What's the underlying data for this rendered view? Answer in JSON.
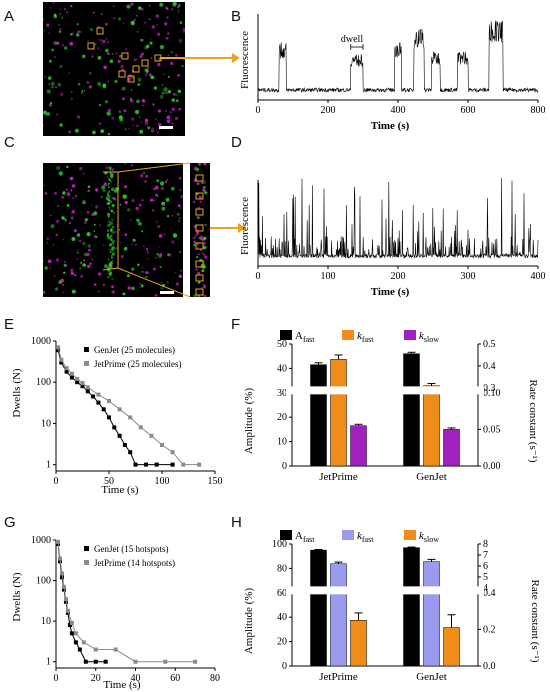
{
  "panels": {
    "A": "A",
    "B": "B",
    "C": "C",
    "D": "D",
    "E": "E",
    "F": "F",
    "G": "G",
    "H": "H"
  },
  "colors": {
    "orange": "#E8A320",
    "green": "#33cc33",
    "magenta": "#c020c0",
    "blue_light": "#9a9aee",
    "orange_bar": "#f08c1a",
    "purple": "#a020c0",
    "gray": "#8a8a8a"
  },
  "chart_data": [
    {
      "id": "B",
      "type": "line",
      "title": "",
      "xlabel": "Time (s)",
      "ylabel": "Fluorescence",
      "xlim": [
        0,
        800
      ],
      "xticks": [
        "0",
        "200",
        "400",
        "600",
        "800"
      ],
      "annotation": "dwell",
      "bursts": [
        [
          60,
          80,
          0.55
        ],
        [
          265,
          300,
          0.42
        ],
        [
          390,
          410,
          0.55
        ],
        [
          445,
          475,
          0.72
        ],
        [
          495,
          520,
          0.45
        ],
        [
          570,
          600,
          0.45
        ],
        [
          660,
          700,
          0.8
        ]
      ]
    },
    {
      "id": "D",
      "type": "line",
      "title": "",
      "xlabel": "Time (s)",
      "ylabel": "Fluorescence",
      "xlim": [
        0,
        400
      ],
      "xticks": [
        "0",
        "100",
        "200",
        "300",
        "400"
      ]
    },
    {
      "id": "E",
      "type": "scatter",
      "xlabel": "Time (s)",
      "ylabel": "Dwells (N)",
      "xlim": [
        0,
        150
      ],
      "ylim_log": [
        0.7,
        1000
      ],
      "xticks": [
        "0",
        "50",
        "100",
        "150"
      ],
      "yticks": [
        "1000",
        "100",
        "10",
        "1"
      ],
      "series": [
        {
          "name": "GenJet (25 molecules)",
          "color": "#000000",
          "points": [
            [
              2,
              600
            ],
            [
              5,
              300
            ],
            [
              10,
              180
            ],
            [
              15,
              130
            ],
            [
              20,
              100
            ],
            [
              25,
              80
            ],
            [
              30,
              60
            ],
            [
              35,
              45
            ],
            [
              40,
              32
            ],
            [
              45,
              22
            ],
            [
              50,
              14
            ],
            [
              55,
              8
            ],
            [
              60,
              5
            ],
            [
              65,
              3
            ],
            [
              70,
              2
            ],
            [
              75,
              1
            ],
            [
              85,
              1
            ],
            [
              95,
              1
            ],
            [
              110,
              1
            ]
          ]
        },
        {
          "name": "JetPrime (25 molecules)",
          "color": "#8a8a8a",
          "points": [
            [
              2,
              700
            ],
            [
              5,
              350
            ],
            [
              10,
              220
            ],
            [
              15,
              160
            ],
            [
              20,
              120
            ],
            [
              25,
              95
            ],
            [
              30,
              75
            ],
            [
              40,
              50
            ],
            [
              50,
              35
            ],
            [
              60,
              22
            ],
            [
              70,
              14
            ],
            [
              80,
              8
            ],
            [
              90,
              5
            ],
            [
              100,
              3
            ],
            [
              110,
              2
            ],
            [
              120,
              1
            ],
            [
              135,
              1
            ]
          ]
        }
      ]
    },
    {
      "id": "F",
      "type": "bar",
      "categories": [
        "JetPrime",
        "GenJet"
      ],
      "ylabel": "Amplitude (%)",
      "ylabel_right": "Rate constant (s⁻¹)",
      "yticks_left": [
        "0",
        "10",
        "20",
        "30",
        "40",
        "50"
      ],
      "yticks_right": [
        "0.00",
        "0.05",
        "0.10",
        "0.3",
        "0.4",
        "0.5"
      ],
      "legend": [
        "A",
        "fast",
        "k",
        "fast",
        "k",
        "slow"
      ],
      "series": [
        {
          "name": "A fast",
          "color": "#000000",
          "values": [
            41.5,
            46.0
          ],
          "errors": [
            0.8,
            0.6
          ]
        },
        {
          "name": "k fast",
          "color": "#f08c1a",
          "values": [
            0.43,
            0.31
          ],
          "errors": [
            0.02,
            0.01
          ]
        },
        {
          "name": "k slow",
          "color": "#a020c0",
          "values": [
            0.055,
            0.05
          ],
          "errors": [
            0.002,
            0.002
          ]
        }
      ]
    },
    {
      "id": "G",
      "type": "scatter",
      "xlabel": "Time (s)",
      "ylabel": "Dwells (N)",
      "xlim": [
        0,
        80
      ],
      "ylim_log": [
        0.7,
        1000
      ],
      "xticks": [
        "0",
        "20",
        "40",
        "60",
        "80"
      ],
      "yticks": [
        "1000",
        "100",
        "10",
        "1"
      ],
      "series": [
        {
          "name": "GenJet (15 hotspots)",
          "color": "#000000",
          "points": [
            [
              1,
              800
            ],
            [
              2,
              300
            ],
            [
              3,
              120
            ],
            [
              4,
              60
            ],
            [
              5,
              30
            ],
            [
              6,
              16
            ],
            [
              7,
              8
            ],
            [
              8,
              5
            ],
            [
              10,
              3
            ],
            [
              12,
              2
            ],
            [
              15,
              1
            ],
            [
              20,
              1
            ],
            [
              25,
              1
            ]
          ]
        },
        {
          "name": "JetPrime (14 hotspots)",
          "color": "#8a8a8a",
          "points": [
            [
              1,
              900
            ],
            [
              2,
              350
            ],
            [
              3,
              150
            ],
            [
              4,
              70
            ],
            [
              5,
              35
            ],
            [
              6,
              18
            ],
            [
              8,
              9
            ],
            [
              10,
              5
            ],
            [
              14,
              3
            ],
            [
              20,
              2
            ],
            [
              30,
              2
            ],
            [
              40,
              1
            ],
            [
              55,
              1
            ],
            [
              70,
              1
            ]
          ]
        }
      ]
    },
    {
      "id": "H",
      "type": "bar",
      "categories": [
        "JetPrime",
        "GenJet"
      ],
      "ylabel": "Amplitude (%)",
      "ylabel_right": "Rate constant (s⁻¹)",
      "yticks_left": [
        "0",
        "20",
        "40",
        "60",
        "80",
        "100"
      ],
      "yticks_right": [
        "0.0",
        "0.2",
        "0.4",
        "4",
        "5",
        "6",
        "7",
        "8"
      ],
      "legend": [
        "A",
        "fast",
        "k",
        "fast",
        "k",
        "slow"
      ],
      "series": [
        {
          "name": "A fast",
          "color": "#000000",
          "values": [
            95,
            97
          ],
          "errors": [
            0.5,
            0.5
          ]
        },
        {
          "name": "k fast",
          "color": "#9a9aee",
          "values": [
            6.2,
            6.4
          ],
          "errors": [
            0.15,
            0.2
          ]
        },
        {
          "name": "k slow",
          "color": "#f08c1a",
          "values": [
            0.25,
            0.21
          ],
          "errors": [
            0.04,
            0.07
          ]
        }
      ]
    }
  ]
}
